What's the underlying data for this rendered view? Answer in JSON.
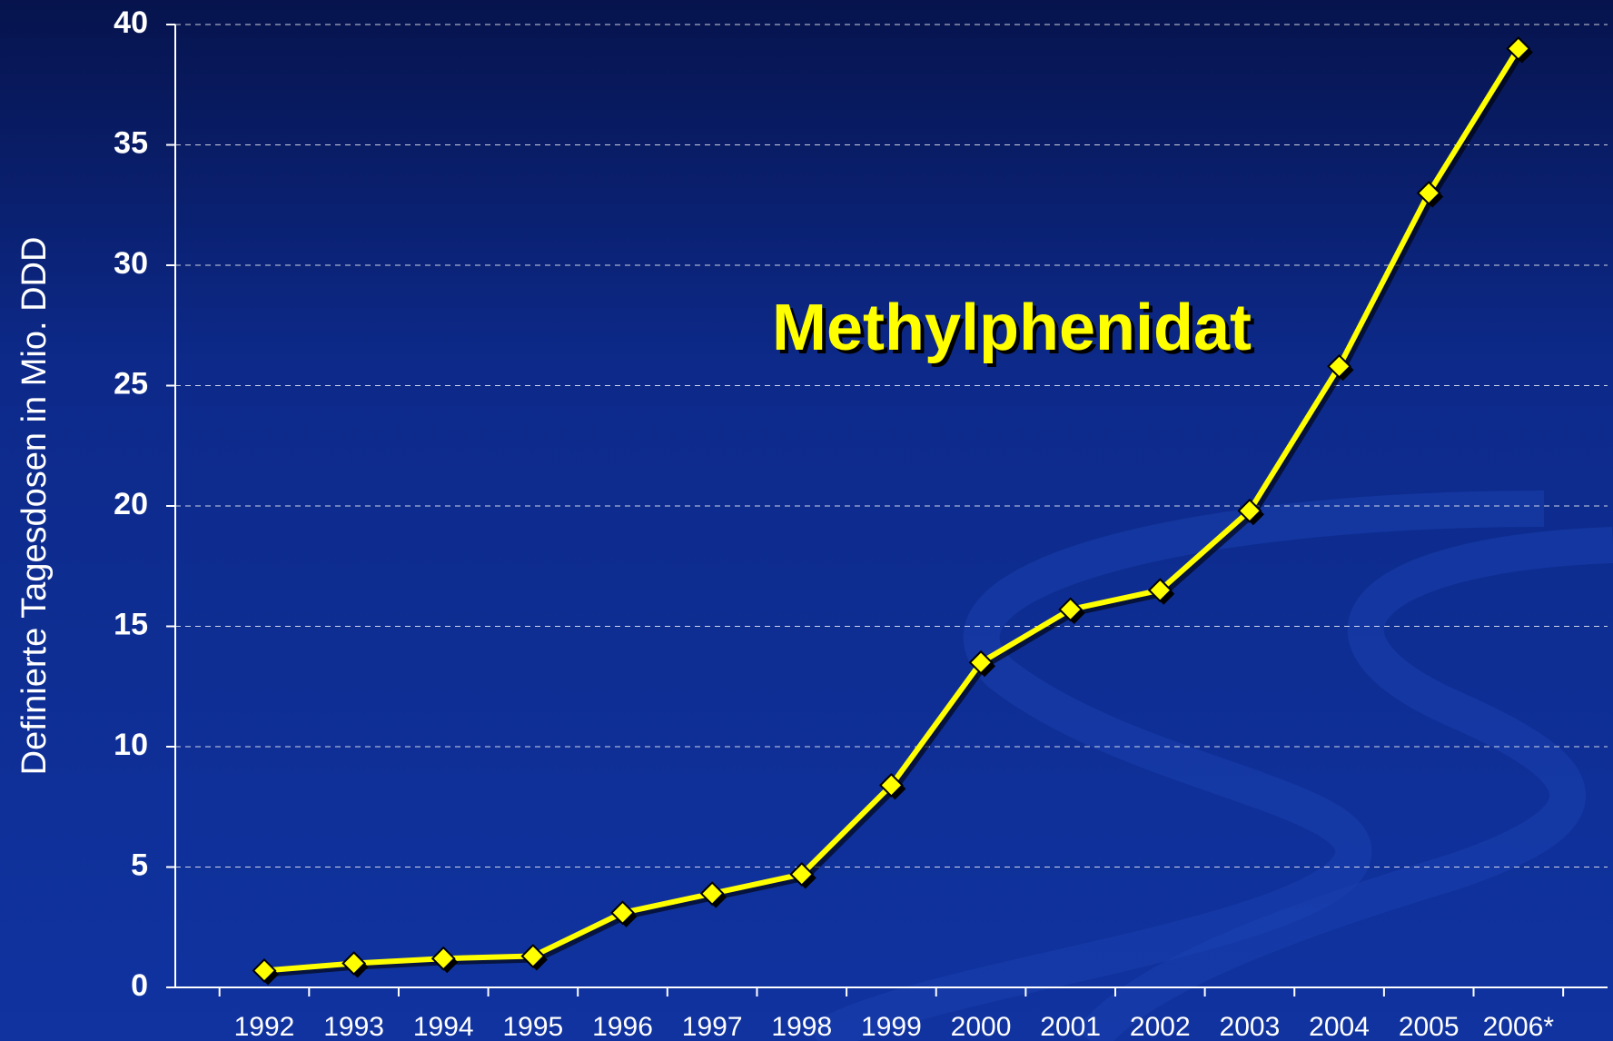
{
  "chart_data": {
    "type": "line",
    "y_label": "Definierte Tagesdosen in  Mio. DDD",
    "annotation": "Methylphenidat",
    "categories": [
      "1992",
      "1993",
      "1994",
      "1995",
      "1996",
      "1997",
      "1998",
      "1999",
      "2000",
      "2001",
      "2002",
      "2003",
      "2004",
      "2005",
      "2006*"
    ],
    "series": [
      {
        "name": "Methylphenidat",
        "color": "#ffff00",
        "values": [
          0.7,
          1.0,
          1.2,
          1.3,
          3.1,
          3.9,
          4.7,
          8.4,
          13.5,
          15.7,
          16.5,
          19.8,
          25.8,
          33.0,
          39.0
        ]
      }
    ],
    "ylim": [
      0,
      40
    ],
    "yticks": [
      0,
      5,
      10,
      15,
      20,
      25,
      30,
      35,
      40
    ],
    "grid": true
  }
}
